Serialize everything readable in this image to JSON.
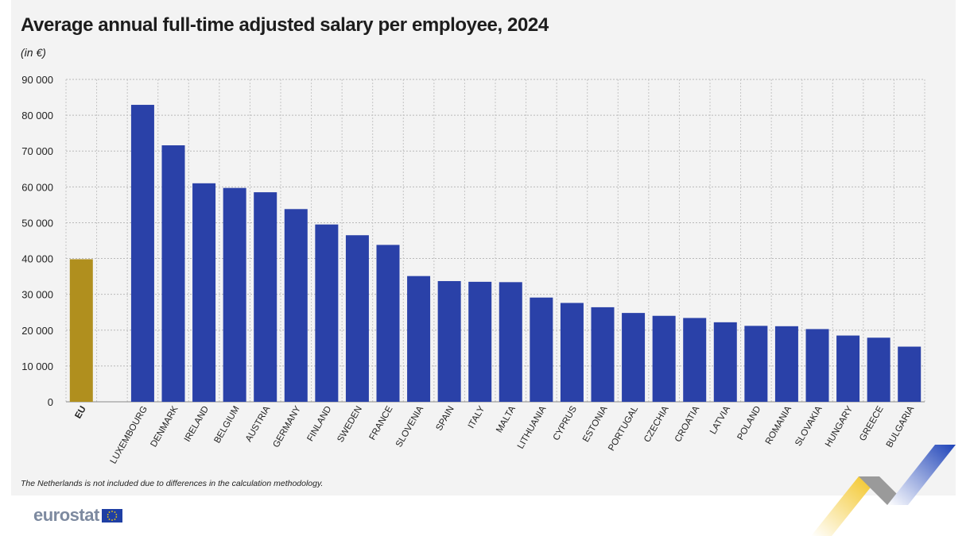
{
  "chart_data": {
    "type": "bar",
    "title": "Average annual full-time adjusted salary per employee, 2024",
    "subtitle": "(in €)",
    "categories": [
      "EU",
      "LUXEMBOURG",
      "DENMARK",
      "IRELAND",
      "BELGIUM",
      "AUSTRIA",
      "GERMANY",
      "FINLAND",
      "SWEDEN",
      "FRANCE",
      "SLOVENIA",
      "SPAIN",
      "ITALY",
      "MALTA",
      "LITHUANIA",
      "CYPRUS",
      "ESTONIA",
      "PORTUGAL",
      "CZECHIA",
      "CROATIA",
      "LATVIA",
      "POLAND",
      "ROMANIA",
      "SLOVAKIA",
      "HUNGARY",
      "GREECE",
      "BULGARIA"
    ],
    "values": [
      39800,
      82900,
      71600,
      61000,
      59700,
      58500,
      53800,
      49500,
      46500,
      43800,
      35100,
      33700,
      33500,
      33400,
      29100,
      27600,
      26400,
      24800,
      24000,
      23400,
      22200,
      21200,
      21100,
      20300,
      18500,
      17900,
      15400
    ],
    "ylim": [
      0,
      90000
    ],
    "yticks": [
      "0",
      "10 000",
      "20 000",
      "30 000",
      "40 000",
      "50 000",
      "60 000",
      "70 000",
      "80 000",
      "90 000"
    ],
    "grid": true,
    "colors": {
      "eu": "#b08f1e",
      "country": "#2a41a8"
    },
    "footnote": "The Netherlands is not included due to differences in the calculation methodology."
  },
  "branding": {
    "logo_text": "eurostat",
    "flag_icon": "eu-flag-icon",
    "corner_icon": "eurostat-corner-stripes-icon"
  }
}
